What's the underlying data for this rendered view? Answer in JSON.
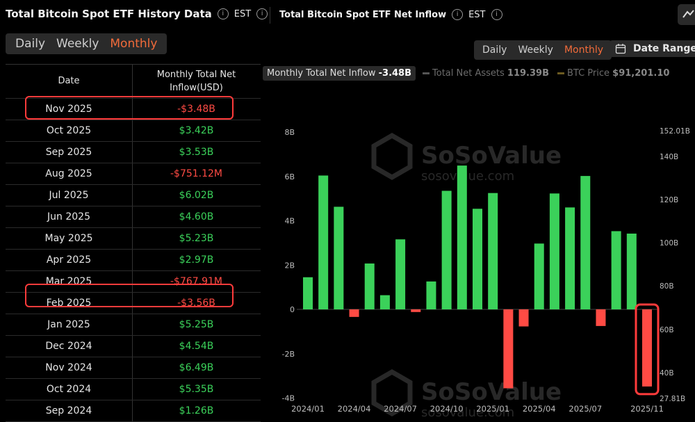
{
  "header": {
    "left_title": "Total Bitcoin Spot ETF History Data",
    "left_tz": "EST",
    "right_title": "Total Bitcoin Spot ETF Net Inflow",
    "right_tz": "EST"
  },
  "table_tabs": {
    "items": [
      "Daily",
      "Weekly",
      "Monthly"
    ],
    "active": "Monthly"
  },
  "chart_tabs": {
    "items": [
      "Daily",
      "Weekly",
      "Monthly"
    ],
    "active": "Monthly"
  },
  "date_range_label": "Date Range",
  "table": {
    "col_date": "Date",
    "col_value_line1": "Monthly Total Net",
    "col_value_line2": "Inflow(USD)",
    "rows": [
      {
        "date": "Nov 2025",
        "value": "-$3.48B",
        "sign": "neg"
      },
      {
        "date": "Oct 2025",
        "value": "$3.42B",
        "sign": "pos"
      },
      {
        "date": "Sep 2025",
        "value": "$3.53B",
        "sign": "pos"
      },
      {
        "date": "Aug 2025",
        "value": "-$751.12M",
        "sign": "neg"
      },
      {
        "date": "Jul 2025",
        "value": "$6.02B",
        "sign": "pos"
      },
      {
        "date": "Jun 2025",
        "value": "$4.60B",
        "sign": "pos"
      },
      {
        "date": "May 2025",
        "value": "$5.23B",
        "sign": "pos"
      },
      {
        "date": "Apr 2025",
        "value": "$2.97B",
        "sign": "pos"
      },
      {
        "date": "Mar 2025",
        "value": "-$767.91M",
        "sign": "neg"
      },
      {
        "date": "Feb 2025",
        "value": "-$3.56B",
        "sign": "neg"
      },
      {
        "date": "Jan 2025",
        "value": "$5.25B",
        "sign": "pos"
      },
      {
        "date": "Dec 2024",
        "value": "$4.54B",
        "sign": "pos"
      },
      {
        "date": "Nov 2024",
        "value": "$6.49B",
        "sign": "pos"
      },
      {
        "date": "Oct 2024",
        "value": "$5.35B",
        "sign": "pos"
      },
      {
        "date": "Sep 2024",
        "value": "$1.26B",
        "sign": "pos"
      }
    ]
  },
  "legend": {
    "net_inflow_label": "Monthly Total Net Inflow",
    "net_inflow_value": "-3.48B",
    "net_assets_label": "Total Net Assets",
    "net_assets_value": "119.39B",
    "btc_price_label": "BTC Price",
    "btc_price_value": "$91,201.10"
  },
  "watermark": {
    "brand": "SoSoValue",
    "site": "sosovalue.com"
  },
  "colors": {
    "positive": "#3bd15a",
    "negative": "#ff4b44",
    "accent": "#f26b3a",
    "highlight": "#ff3b3b"
  },
  "chart_data": {
    "type": "bar",
    "categories": [
      "2024/01",
      "2024/02",
      "2024/03",
      "2024/04",
      "2024/05",
      "2024/06",
      "2024/07",
      "2024/08",
      "2024/09",
      "2024/10",
      "2024/11",
      "2024/12",
      "2025/01",
      "2025/02",
      "2025/03",
      "2025/04",
      "2025/05",
      "2025/06",
      "2025/07",
      "2025/08",
      "2025/09",
      "2025/10",
      "2025/11"
    ],
    "series": [
      {
        "values": [
          1.45,
          6.04,
          4.63,
          -0.34,
          2.07,
          0.64,
          3.16,
          -0.12,
          1.26,
          5.35,
          6.49,
          4.54,
          5.25,
          -3.56,
          -0.77,
          2.97,
          5.23,
          4.6,
          6.02,
          -0.75,
          3.53,
          3.42,
          -3.48
        ]
      }
    ],
    "xtick_labels": [
      "2024/01",
      "2024/04",
      "2024/07",
      "2024/10",
      "2025/01",
      "2025/04",
      "2025/07",
      "2025/11"
    ],
    "yticks_left": [
      "-4B",
      "-2B",
      "0",
      "2B",
      "4B",
      "6B",
      "8B"
    ],
    "yticks_right": [
      "27.81B",
      "40B",
      "60B",
      "80B",
      "100B",
      "120B",
      "140B",
      "152.01B"
    ],
    "ylim": [
      -4,
      8
    ],
    "highlight_index": 22
  }
}
